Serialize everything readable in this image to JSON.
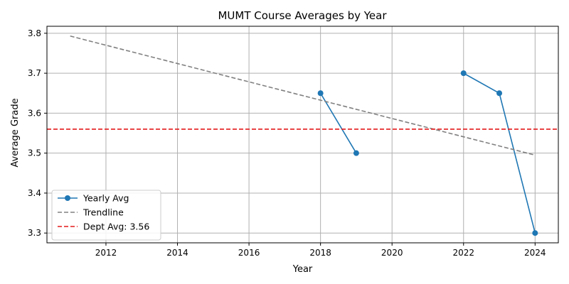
{
  "chart_data": {
    "type": "line",
    "title": "MUMT Course Averages by Year",
    "xlabel": "Year",
    "ylabel": "Average Grade",
    "xlim": [
      2010.35,
      2024.65
    ],
    "ylim": [
      3.2755,
      3.8175
    ],
    "grid": true,
    "legend_position": "lower-left",
    "x_ticks": [
      "2012",
      "2014",
      "2016",
      "2018",
      "2020",
      "2022",
      "2024"
    ],
    "y_ticks": [
      "3.3",
      "3.4",
      "3.5",
      "3.6",
      "3.7",
      "3.8"
    ],
    "series": [
      {
        "name": "Yearly Avg",
        "style": "solid-markers",
        "color": "#1f77b4",
        "segments": [
          [
            {
              "x": 2018,
              "y": 3.65
            },
            {
              "x": 2019,
              "y": 3.5
            }
          ],
          [
            {
              "x": 2022,
              "y": 3.7
            },
            {
              "x": 2023,
              "y": 3.65
            },
            {
              "x": 2024,
              "y": 3.3
            }
          ]
        ]
      },
      {
        "name": "Trendline",
        "style": "dashed",
        "color": "#808080",
        "points": [
          {
            "x": 2011,
            "y": 3.793
          },
          {
            "x": 2024,
            "y": 3.495
          }
        ]
      },
      {
        "name": "Dept Avg: 3.56",
        "style": "dashed-hline",
        "color": "#e41a1c",
        "y": 3.56
      }
    ]
  }
}
